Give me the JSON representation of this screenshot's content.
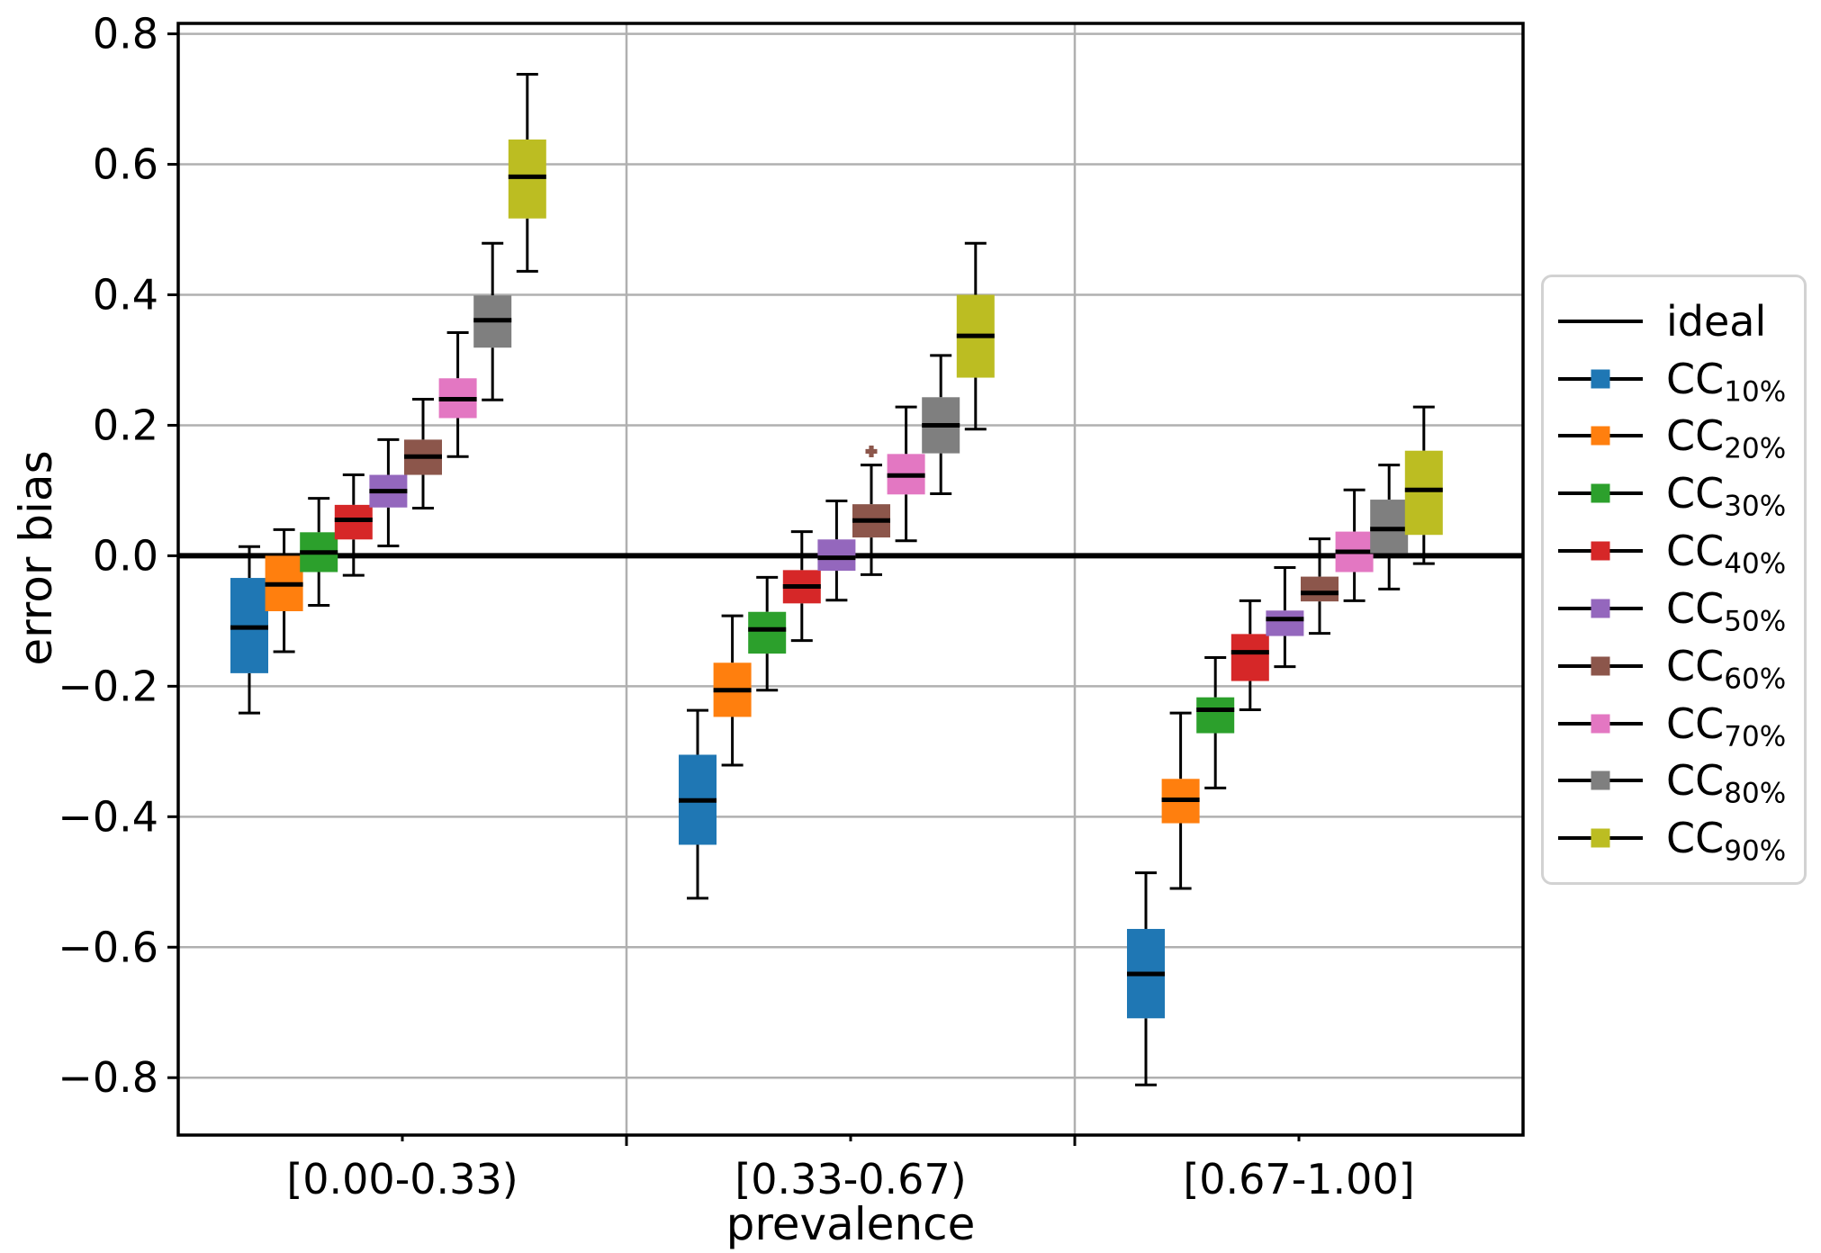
{
  "figure": {
    "background": "#ffffff"
  },
  "chart_data": {
    "type": "boxplot",
    "title": "",
    "xlabel": "prevalence",
    "ylabel": "error bias",
    "ylim": [
      -0.888,
      0.816
    ],
    "yticks": [
      -0.8,
      -0.6,
      -0.4,
      -0.2,
      0.0,
      0.2,
      0.4,
      0.6,
      0.8
    ],
    "ytick_labels": [
      "−0.8",
      "−0.6",
      "−0.4",
      "−0.2",
      "0.0",
      "0.2",
      "0.4",
      "0.6",
      "0.8"
    ],
    "groups": [
      "[0.00-0.33)",
      "[0.33-0.67)",
      "[0.67-1.00]"
    ],
    "grid": true,
    "grid_color": "#b0b0b0",
    "legend_position": "right",
    "ideal": {
      "label": "ideal",
      "value": 0.0,
      "color": "#000000"
    },
    "series": [
      {
        "name": "CC",
        "sub": "10%",
        "color": "#1f77b4",
        "boxes": [
          {
            "whislo": -0.241,
            "q1": -0.18,
            "med": -0.11,
            "q3": -0.034,
            "whishi": 0.014,
            "fliers": []
          },
          {
            "whislo": -0.525,
            "q1": -0.443,
            "med": -0.375,
            "q3": -0.305,
            "whishi": -0.237,
            "fliers": []
          },
          {
            "whislo": -0.811,
            "q1": -0.709,
            "med": -0.641,
            "q3": -0.572,
            "whishi": -0.486,
            "fliers": []
          }
        ]
      },
      {
        "name": "CC",
        "sub": "20%",
        "color": "#ff7f0e",
        "boxes": [
          {
            "whislo": -0.147,
            "q1": -0.085,
            "med": -0.044,
            "q3": 0.0,
            "whishi": 0.04,
            "fliers": []
          },
          {
            "whislo": -0.321,
            "q1": -0.247,
            "med": -0.206,
            "q3": -0.164,
            "whishi": -0.092,
            "fliers": []
          },
          {
            "whislo": -0.51,
            "q1": -0.41,
            "med": -0.374,
            "q3": -0.342,
            "whishi": -0.241,
            "fliers": []
          }
        ]
      },
      {
        "name": "CC",
        "sub": "30%",
        "color": "#2ca02c",
        "boxes": [
          {
            "whislo": -0.076,
            "q1": -0.025,
            "med": 0.005,
            "q3": 0.036,
            "whishi": 0.088,
            "fliers": []
          },
          {
            "whislo": -0.206,
            "q1": -0.15,
            "med": -0.113,
            "q3": -0.086,
            "whishi": -0.033,
            "fliers": []
          },
          {
            "whislo": -0.356,
            "q1": -0.272,
            "med": -0.236,
            "q3": -0.217,
            "whishi": -0.156,
            "fliers": []
          }
        ]
      },
      {
        "name": "CC",
        "sub": "40%",
        "color": "#d62728",
        "boxes": [
          {
            "whislo": -0.03,
            "q1": 0.025,
            "med": 0.055,
            "q3": 0.078,
            "whishi": 0.124,
            "fliers": []
          },
          {
            "whislo": -0.13,
            "q1": -0.073,
            "med": -0.047,
            "q3": -0.022,
            "whishi": 0.037,
            "fliers": []
          },
          {
            "whislo": -0.236,
            "q1": -0.192,
            "med": -0.148,
            "q3": -0.12,
            "whishi": -0.069,
            "fliers": []
          }
        ]
      },
      {
        "name": "CC",
        "sub": "50%",
        "color": "#9467bd",
        "boxes": [
          {
            "whislo": 0.015,
            "q1": 0.074,
            "med": 0.099,
            "q3": 0.124,
            "whishi": 0.178,
            "fliers": []
          },
          {
            "whislo": -0.068,
            "q1": -0.023,
            "med": -0.003,
            "q3": 0.025,
            "whishi": 0.084,
            "fliers": []
          },
          {
            "whislo": -0.17,
            "q1": -0.123,
            "med": -0.097,
            "q3": -0.084,
            "whishi": -0.018,
            "fliers": []
          }
        ]
      },
      {
        "name": "CC",
        "sub": "60%",
        "color": "#8c564b",
        "boxes": [
          {
            "whislo": 0.073,
            "q1": 0.124,
            "med": 0.152,
            "q3": 0.178,
            "whishi": 0.24,
            "fliers": []
          },
          {
            "whislo": -0.029,
            "q1": 0.028,
            "med": 0.054,
            "q3": 0.079,
            "whishi": 0.139,
            "fliers": [
              0.16
            ]
          },
          {
            "whislo": -0.119,
            "q1": -0.07,
            "med": -0.057,
            "q3": -0.032,
            "whishi": 0.026,
            "fliers": []
          }
        ]
      },
      {
        "name": "CC",
        "sub": "70%",
        "color": "#e377c2",
        "boxes": [
          {
            "whislo": 0.152,
            "q1": 0.211,
            "med": 0.24,
            "q3": 0.272,
            "whishi": 0.342,
            "fliers": []
          },
          {
            "whislo": 0.023,
            "q1": 0.094,
            "med": 0.123,
            "q3": 0.156,
            "whishi": 0.228,
            "fliers": []
          },
          {
            "whislo": -0.069,
            "q1": -0.025,
            "med": 0.006,
            "q3": 0.037,
            "whishi": 0.101,
            "fliers": []
          }
        ]
      },
      {
        "name": "CC",
        "sub": "80%",
        "color": "#7f7f7f",
        "boxes": [
          {
            "whislo": 0.239,
            "q1": 0.319,
            "med": 0.361,
            "q3": 0.399,
            "whishi": 0.479,
            "fliers": []
          },
          {
            "whislo": 0.095,
            "q1": 0.157,
            "med": 0.2,
            "q3": 0.243,
            "whishi": 0.307,
            "fliers": []
          },
          {
            "whislo": -0.051,
            "q1": 0.004,
            "med": 0.041,
            "q3": 0.086,
            "whishi": 0.139,
            "fliers": []
          }
        ]
      },
      {
        "name": "CC",
        "sub": "90%",
        "color": "#bcbd22",
        "boxes": [
          {
            "whislo": 0.436,
            "q1": 0.517,
            "med": 0.581,
            "q3": 0.638,
            "whishi": 0.738,
            "fliers": []
          },
          {
            "whislo": 0.194,
            "q1": 0.273,
            "med": 0.337,
            "q3": 0.4,
            "whishi": 0.479,
            "fliers": []
          },
          {
            "whislo": -0.012,
            "q1": 0.032,
            "med": 0.101,
            "q3": 0.161,
            "whishi": 0.228,
            "fliers": []
          }
        ]
      }
    ]
  }
}
